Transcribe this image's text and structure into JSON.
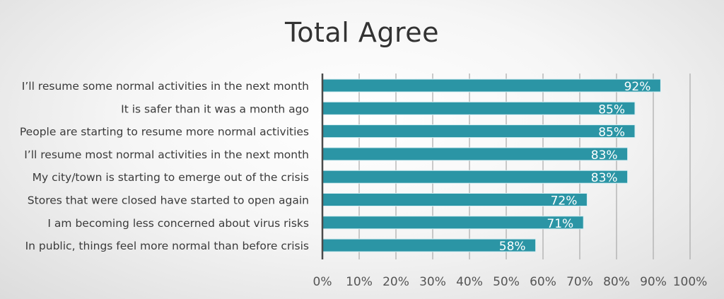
{
  "chart_data": {
    "type": "bar",
    "orientation": "horizontal",
    "title": "Total Agree",
    "categories": [
      "I’ll resume some normal activities in the next month",
      "It is safer than it was a month ago",
      "People are starting to resume more normal activities",
      "I’ll resume most normal activities in the next month",
      "My city/town is starting to emerge out of the crisis",
      "Stores that were closed have started to open again",
      "I am becoming less concerned about virus risks",
      "In public, things feel more normal than before crisis"
    ],
    "values": [
      92,
      85,
      85,
      83,
      83,
      72,
      71,
      58
    ],
    "data_labels": [
      "92%",
      "85%",
      "85%",
      "83%",
      "83%",
      "72%",
      "71%",
      "58%"
    ],
    "x_ticks": [
      "0%",
      "10%",
      "20%",
      "30%",
      "40%",
      "50%",
      "60%",
      "70%",
      "80%",
      "90%",
      "100%"
    ],
    "xlim": [
      0,
      100
    ],
    "xlabel": "",
    "ylabel": "",
    "grid": "vertical",
    "legend": "none",
    "colors": {
      "bar": "#2b95a5",
      "bar_edge": "#d6eef2",
      "grid": "#a9a9a9",
      "axis": "#4a4a4a"
    }
  }
}
